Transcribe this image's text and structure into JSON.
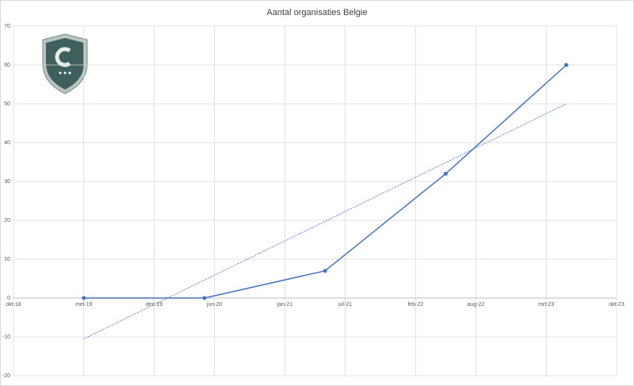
{
  "chart_data": {
    "type": "line",
    "title": "Aantal organisaties Belgie",
    "x": [
      "2019-05",
      "2020-05",
      "2021-05",
      "2022-05",
      "2023-05"
    ],
    "series": [
      {
        "color": "#4472c4",
        "values": [
          0,
          0,
          7,
          32,
          60
        ]
      }
    ],
    "trendline": {
      "x": [
        "2019-05",
        "2023-05"
      ],
      "values": [
        -10.5,
        50
      ],
      "color": "#4472c4"
    },
    "xlim": [
      "2018-10",
      "2023-10"
    ],
    "xticks": [
      {
        "value": "2018-10",
        "label": "okt-18"
      },
      {
        "value": "2019-05",
        "label": "mei-19"
      },
      {
        "value": "2019-12",
        "label": "dec-19"
      },
      {
        "value": "2020-06",
        "label": "jun-20"
      },
      {
        "value": "2021-01",
        "label": "jan-21"
      },
      {
        "value": "2021-07",
        "label": "jul-21"
      },
      {
        "value": "2022-02",
        "label": "feb-22"
      },
      {
        "value": "2022-08",
        "label": "aug-22"
      },
      {
        "value": "2023-03",
        "label": "mrt-23"
      },
      {
        "value": "2023-10",
        "label": "okt-23"
      }
    ],
    "ylim": [
      -20,
      70
    ],
    "yticks": [
      -20,
      -10,
      0,
      10,
      20,
      30,
      40,
      50,
      60,
      70
    ],
    "grid": true
  }
}
